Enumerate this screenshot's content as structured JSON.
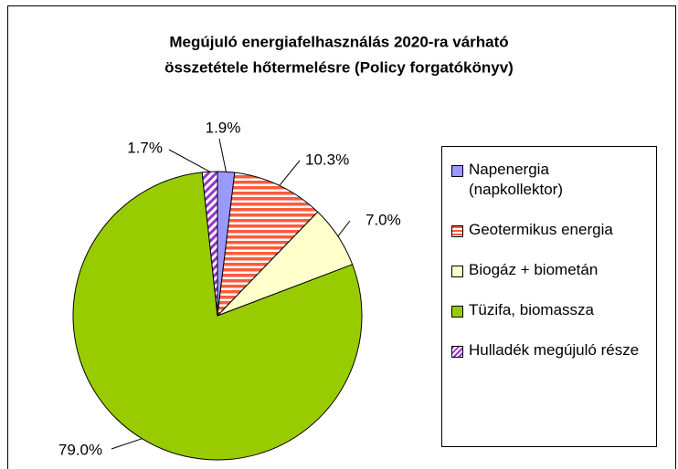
{
  "chart_data": {
    "type": "pie",
    "title": [
      "Megújuló energiafelhasználás 2020-ra várható",
      "összetétele hőtermelésre (Policy forgatókönyv)"
    ],
    "categories": [
      "Napenergia (napkollektor)",
      "Geotermikus energia",
      "Biogáz + biometán",
      "Tüzifa, biomassza",
      "Hulladék megújuló része"
    ],
    "values": [
      1.9,
      10.3,
      7.0,
      79.0,
      1.7
    ],
    "value_labels": [
      "1.9%",
      "10.3%",
      "7.0%",
      "79.0%",
      "1.7%"
    ],
    "colors": [
      "#9999ff",
      "#ff5a3c",
      "#ffffcc",
      "#99cc00",
      "#9933cc"
    ],
    "patterns": [
      null,
      "horizontal",
      null,
      null,
      "diagonal"
    ],
    "legend": "right"
  }
}
